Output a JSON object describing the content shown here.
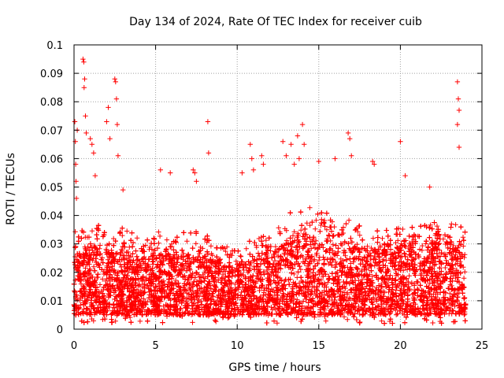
{
  "chart_data": {
    "type": "scatter",
    "title": "Day 134 of 2024, Rate Of TEC Index for receiver cuib",
    "xlabel": "GPS time / hours",
    "ylabel": "ROTI / TECUs",
    "xlim": [
      0,
      25
    ],
    "ylim": [
      0,
      0.1
    ],
    "x_ticks": [
      0,
      5,
      10,
      15,
      20,
      25
    ],
    "x_tick_labels": [
      "0",
      "5",
      "10",
      "15",
      "20",
      "25"
    ],
    "y_ticks": [
      0,
      0.01,
      0.02,
      0.03,
      0.04,
      0.05,
      0.06,
      0.07,
      0.08,
      0.09,
      0.1
    ],
    "y_tick_labels": [
      "0",
      "0.01",
      "0.02",
      "0.03",
      "0.04",
      "0.05",
      "0.06",
      "0.07",
      "0.08",
      "0.09",
      "0.1"
    ],
    "grid": true,
    "marker": "+",
    "series_color": "#ff0000",
    "series": [
      {
        "name": "ROTI",
        "x": [
          0.05,
          0.08,
          0.1,
          0.12,
          0.15,
          0.2,
          0.55,
          0.6,
          0.65,
          0.62,
          0.7,
          0.75,
          1.0,
          1.1,
          1.2,
          1.3,
          2.0,
          2.1,
          2.2,
          2.5,
          2.55,
          2.6,
          2.65,
          2.7,
          3.0,
          5.3,
          5.9,
          7.3,
          7.4,
          7.5,
          8.2,
          8.25,
          10.3,
          10.8,
          10.9,
          11.0,
          11.5,
          11.6,
          12.8,
          13.0,
          13.3,
          13.5,
          13.7,
          13.8,
          14.0,
          14.1,
          15.0,
          16.0,
          16.8,
          16.9,
          17.0,
          18.3,
          18.4,
          20.0,
          20.3,
          21.8,
          23.5,
          23.55,
          23.6,
          23.5,
          23.6
        ],
        "y": [
          0.073,
          0.066,
          0.058,
          0.052,
          0.046,
          0.07,
          0.095,
          0.094,
          0.088,
          0.085,
          0.075,
          0.069,
          0.067,
          0.065,
          0.062,
          0.054,
          0.073,
          0.078,
          0.067,
          0.088,
          0.087,
          0.081,
          0.072,
          0.061,
          0.049,
          0.056,
          0.055,
          0.056,
          0.055,
          0.052,
          0.073,
          0.062,
          0.055,
          0.065,
          0.06,
          0.056,
          0.061,
          0.058,
          0.066,
          0.061,
          0.065,
          0.058,
          0.068,
          0.06,
          0.072,
          0.065,
          0.059,
          0.06,
          0.069,
          0.067,
          0.061,
          0.059,
          0.058,
          0.066,
          0.054,
          0.05,
          0.087,
          0.081,
          0.077,
          0.072,
          0.064
        ]
      }
    ],
    "density_profile": {
      "description": "Dense band of ROTI measurements sampled across the full day",
      "hours": [
        0,
        1,
        2,
        3,
        4,
        5,
        6,
        7,
        8,
        9,
        10,
        11,
        12,
        13,
        14,
        15,
        16,
        17,
        18,
        19,
        20,
        21,
        22,
        23,
        24
      ],
      "upper_envelope": [
        0.035,
        0.035,
        0.038,
        0.036,
        0.033,
        0.035,
        0.032,
        0.036,
        0.034,
        0.03,
        0.028,
        0.033,
        0.035,
        0.042,
        0.045,
        0.042,
        0.04,
        0.038,
        0.036,
        0.035,
        0.036,
        0.038,
        0.04,
        0.04,
        0.035
      ],
      "core_top": [
        0.026,
        0.026,
        0.027,
        0.026,
        0.024,
        0.026,
        0.025,
        0.026,
        0.025,
        0.023,
        0.022,
        0.024,
        0.026,
        0.03,
        0.032,
        0.031,
        0.03,
        0.029,
        0.028,
        0.028,
        0.028,
        0.029,
        0.03,
        0.03,
        0.026
      ],
      "lower_envelope": 0.005
    }
  }
}
